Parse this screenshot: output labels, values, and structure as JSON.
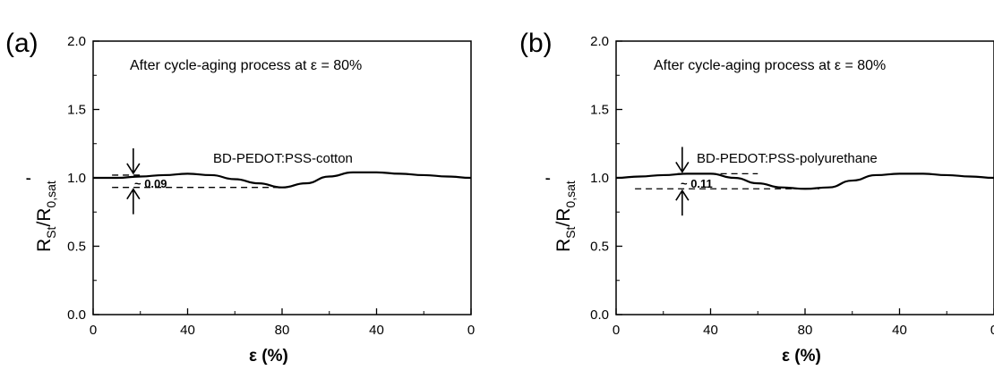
{
  "chart_data": [
    {
      "panel_label": "(a)",
      "type": "line",
      "annotation": "After cycle-aging process at ε = 80%",
      "series_label": "BD-PEDOT:PSS-cotton",
      "delta_label": "~ 0.09",
      "xlabel": "ε (%)",
      "ylabel_main": "R",
      "ylabel_sub1": "St",
      "ylabel_mid": "/R",
      "ylabel_sub2": "0,sat",
      "ylabel_prime": "'",
      "x_ticks": [
        "0",
        "40",
        "80",
        "40",
        "0"
      ],
      "x_tick_positions": [
        0,
        40,
        80,
        120,
        160
      ],
      "xlim": [
        0,
        160
      ],
      "ylim": [
        0.0,
        2.0
      ],
      "y_ticks": [
        "0.0",
        "0.5",
        "1.0",
        "1.5",
        "2.0"
      ],
      "y_tick_values": [
        0.0,
        0.5,
        1.0,
        1.5,
        2.0
      ],
      "series": [
        {
          "x": [
            0,
            10,
            20,
            30,
            40,
            50,
            60,
            70,
            80,
            90,
            100,
            110,
            120,
            130,
            140,
            150,
            160
          ],
          "values": [
            1.0,
            1.0,
            1.01,
            1.02,
            1.03,
            1.02,
            0.99,
            0.96,
            0.93,
            0.96,
            1.01,
            1.04,
            1.04,
            1.03,
            1.02,
            1.01,
            1.0
          ]
        }
      ],
      "ref_upper": {
        "value": 1.02,
        "x_start": 8,
        "x_end": 20
      },
      "ref_lower": {
        "value": 0.93,
        "x_start": 8,
        "x_end": 80
      },
      "arrow_x": 17
    },
    {
      "panel_label": "(b)",
      "type": "line",
      "annotation": "After cycle-aging process at ε = 80%",
      "series_label": "BD-PEDOT:PSS-polyurethane",
      "delta_label": "~ 0.11",
      "xlabel": "ε (%)",
      "ylabel_main": "R",
      "ylabel_sub1": "St",
      "ylabel_mid": "/R",
      "ylabel_sub2": "0,sat",
      "ylabel_prime": "'",
      "x_ticks": [
        "0",
        "40",
        "80",
        "40",
        "0"
      ],
      "x_tick_positions": [
        0,
        40,
        80,
        120,
        160
      ],
      "xlim": [
        0,
        160
      ],
      "ylim": [
        0.0,
        2.0
      ],
      "y_ticks": [
        "0.0",
        "0.5",
        "1.0",
        "1.5",
        "2.0"
      ],
      "y_tick_values": [
        0.0,
        0.5,
        1.0,
        1.5,
        2.0
      ],
      "series": [
        {
          "x": [
            0,
            10,
            20,
            30,
            40,
            50,
            60,
            70,
            80,
            90,
            100,
            110,
            120,
            130,
            140,
            150,
            160
          ],
          "values": [
            1.0,
            1.01,
            1.02,
            1.03,
            1.03,
            1.0,
            0.96,
            0.93,
            0.92,
            0.93,
            0.98,
            1.02,
            1.03,
            1.03,
            1.02,
            1.01,
            1.0
          ]
        }
      ],
      "ref_upper": {
        "value": 1.03,
        "x_start": 26,
        "x_end": 60
      },
      "ref_lower": {
        "value": 0.92,
        "x_start": 8,
        "x_end": 86
      },
      "arrow_x": 28
    }
  ]
}
